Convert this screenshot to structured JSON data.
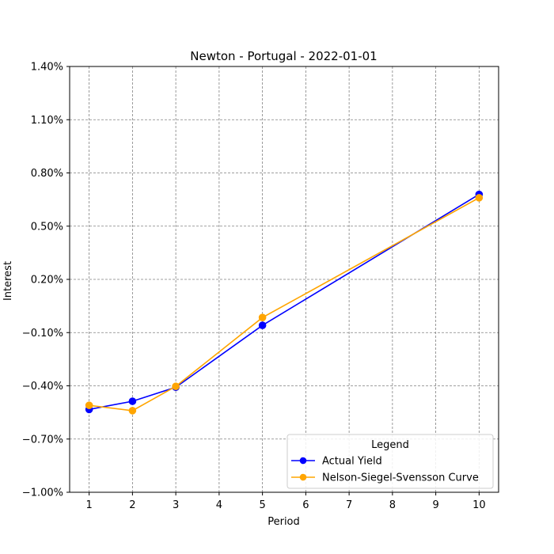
{
  "chart_data": {
    "type": "line",
    "title": "Newton - Portugal - 2022-01-01",
    "xlabel": "Period",
    "ylabel": "Interest",
    "x": [
      1,
      2,
      3,
      5,
      10
    ],
    "xticks": [
      1,
      2,
      3,
      4,
      5,
      6,
      7,
      8,
      9,
      10
    ],
    "xtick_labels": [
      "1",
      "2",
      "3",
      "4",
      "5",
      "6",
      "7",
      "8",
      "9",
      "10"
    ],
    "xlim": [
      0.55,
      10.45
    ],
    "ylim": [
      -1.0,
      1.4
    ],
    "yticks": [
      -1.0,
      -0.7,
      -0.4,
      -0.1,
      0.2,
      0.5,
      0.8,
      1.1,
      1.4
    ],
    "ytick_labels": [
      "−1.00%",
      "−0.70%",
      "−0.40%",
      "−0.10%",
      "0.20%",
      "0.50%",
      "0.80%",
      "1.10%",
      "1.40%"
    ],
    "grid": true,
    "legend": {
      "title": "Legend",
      "placement": "lower-right"
    },
    "series": [
      {
        "name": "Actual Yield",
        "color": "#0000ff",
        "marker": "circle",
        "values": [
          -0.533,
          -0.487,
          -0.408,
          -0.059,
          0.679
        ]
      },
      {
        "name": "Nelson-Siegel-Svensson Curve",
        "color": "#ffa500",
        "marker": "circle",
        "values": [
          -0.51,
          -0.54,
          -0.403,
          -0.015,
          0.66
        ]
      }
    ]
  }
}
